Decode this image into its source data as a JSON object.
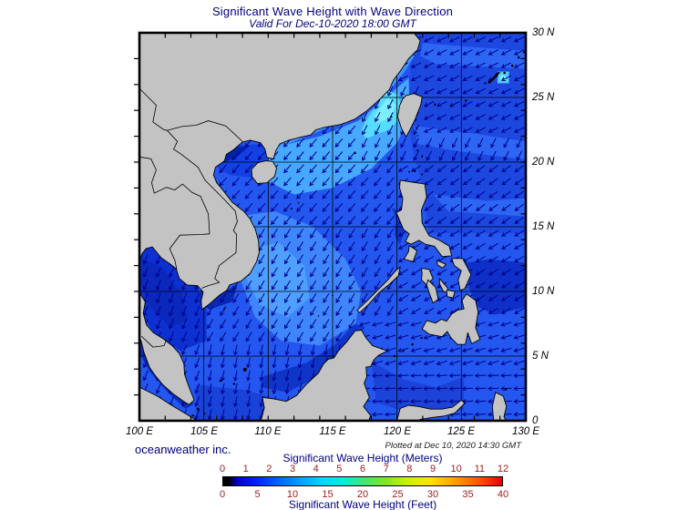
{
  "title": "Significant Wave Height with Wave Direction",
  "subtitle": "Valid For Dec-10-2020 18:00 GMT",
  "credit": "oceanweather inc.",
  "plotted_note": "Plotted at Dec 10, 2020 14:30 GMT",
  "map": {
    "lon_range": [
      100,
      130
    ],
    "lat_range": [
      0,
      30
    ],
    "grid_step_deg": 5,
    "tick_step_deg": 2,
    "lon_labels": [
      {
        "value": 100,
        "text": "100 E"
      },
      {
        "value": 105,
        "text": "105 E"
      },
      {
        "value": 110,
        "text": "110 E"
      },
      {
        "value": 115,
        "text": "115 E"
      },
      {
        "value": 120,
        "text": "120 E"
      },
      {
        "value": 125,
        "text": "125 E"
      },
      {
        "value": 130,
        "text": "130 E"
      }
    ],
    "lat_labels": [
      {
        "value": 30,
        "text": "30 N"
      },
      {
        "value": 25,
        "text": "25 N"
      },
      {
        "value": 20,
        "text": "20 N"
      },
      {
        "value": 15,
        "text": "15 N"
      },
      {
        "value": 10,
        "text": "10 N"
      },
      {
        "value": 5,
        "text": "5 N"
      },
      {
        "value": 0,
        "text": "0"
      }
    ]
  },
  "colorbar": {
    "title_meters": "Significant Wave Height (Meters)",
    "title_feet": "Significant Wave Height (Feet)",
    "meter_ticks": [
      "0",
      "1",
      "2",
      "3",
      "4",
      "5",
      "6",
      "7",
      "8",
      "9",
      "10",
      "11",
      "12"
    ],
    "feet_ticks": [
      "0",
      "5",
      "10",
      "15",
      "20",
      "25",
      "30",
      "35",
      "40"
    ],
    "tick_color": "#A02020",
    "gradient": [
      {
        "p": 0,
        "c": "#000000"
      },
      {
        "p": 2,
        "c": "#000000"
      },
      {
        "p": 5,
        "c": "#0000C8"
      },
      {
        "p": 12,
        "c": "#0024FF"
      },
      {
        "p": 20,
        "c": "#0066FF"
      },
      {
        "p": 28,
        "c": "#00A4FF"
      },
      {
        "p": 35,
        "c": "#00D6FF"
      },
      {
        "p": 43,
        "c": "#00F0DA"
      },
      {
        "p": 50,
        "c": "#3CE878"
      },
      {
        "p": 58,
        "c": "#80E626"
      },
      {
        "p": 66,
        "c": "#CCF200"
      },
      {
        "p": 74,
        "c": "#FFE400"
      },
      {
        "p": 83,
        "c": "#FFA000"
      },
      {
        "p": 92,
        "c": "#FF5000"
      },
      {
        "p": 100,
        "c": "#EC0000"
      }
    ]
  },
  "colors": {
    "title": "#00007F",
    "land": "#C3C3C3",
    "coastline": "#000000",
    "grid": "#000000",
    "ocean_base": "#2357EF",
    "arrow": "#00008B",
    "ocean_shades": [
      "#1C48E0",
      "#2E66F4",
      "#0E30C8",
      "#3F93FC",
      "#47A8FF",
      "#55DCFF",
      "#7CEFFF",
      "#3E86FA",
      "#4F9FFF",
      "#0D31D0",
      "#0A28BC",
      "#1340E4",
      "#0022A8",
      "#0A26B4",
      "#0C2CC0",
      "#1942D8",
      "#0F35C8",
      "#1B43D8",
      "#55C8FF"
    ]
  }
}
